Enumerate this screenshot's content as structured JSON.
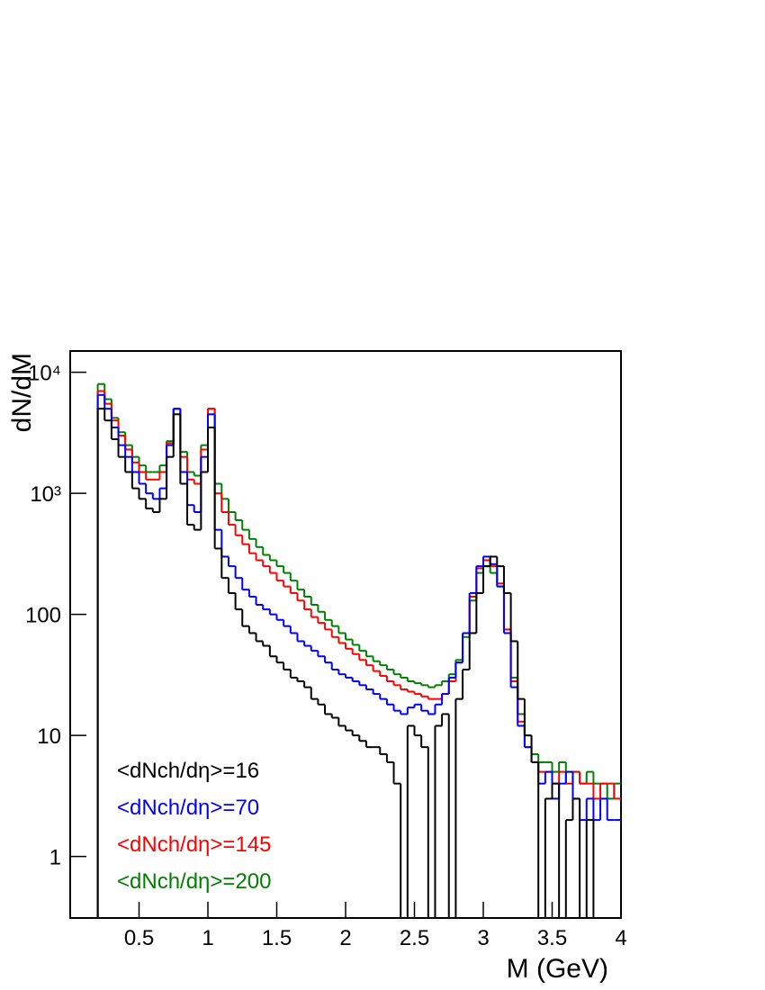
{
  "chart_data": {
    "type": "histogram",
    "xlabel": "M (GeV)",
    "ylabel": "dN/dM",
    "xlim": [
      0,
      4
    ],
    "ylim": [
      0.31,
      15000
    ],
    "ylog": true,
    "xticks": [
      0.5,
      1,
      1.5,
      2,
      2.5,
      3,
      3.5,
      4
    ],
    "yticks": [
      1,
      10,
      100,
      {
        "value": 1000,
        "label": "10³"
      },
      {
        "value": 10000,
        "label": "10⁴"
      }
    ],
    "legend": "bottom-left",
    "bins": [
      0,
      0.05,
      0.1,
      0.15,
      0.2,
      0.25,
      0.3,
      0.35,
      0.4,
      0.45,
      0.5,
      0.55,
      0.6,
      0.65,
      0.7,
      0.75,
      0.8,
      0.85,
      0.9,
      0.95,
      1,
      1.05,
      1.1,
      1.15,
      1.2,
      1.25,
      1.3,
      1.35,
      1.4,
      1.45,
      1.5,
      1.55,
      1.6,
      1.65,
      1.7,
      1.75,
      1.8,
      1.85,
      1.9,
      1.95,
      2,
      2.05,
      2.1,
      2.15,
      2.2,
      2.25,
      2.3,
      2.35,
      2.4,
      2.45,
      2.5,
      2.55,
      2.6,
      2.65,
      2.7,
      2.75,
      2.8,
      2.85,
      2.9,
      2.95,
      3,
      3.05,
      3.1,
      3.15,
      3.2,
      3.25,
      3.3,
      3.35,
      3.4,
      3.45,
      3.5,
      3.55,
      3.6,
      3.65,
      3.7,
      3.75,
      3.8,
      3.85,
      3.9,
      3.95,
      4
    ],
    "series": [
      {
        "name": "<dNch/dη>=16",
        "color": "#000000",
        "values": [
          0,
          0,
          0,
          0,
          5000,
          4000,
          2800,
          2000,
          1500,
          1100,
          900,
          750,
          700,
          900,
          2000,
          4500,
          1200,
          550,
          500,
          1500,
          3500,
          350,
          200,
          150,
          110,
          80,
          70,
          60,
          55,
          45,
          40,
          35,
          30,
          28,
          25,
          20,
          18,
          15,
          14,
          12,
          11,
          10,
          9,
          8,
          8,
          7,
          6,
          4,
          0,
          12,
          10,
          8,
          0,
          12,
          15,
          0,
          20,
          35,
          70,
          150,
          250,
          300,
          250,
          150,
          60,
          20,
          10,
          6,
          0,
          3,
          4,
          0,
          2,
          3,
          0,
          2,
          0,
          0,
          0,
          0
        ]
      },
      {
        "name": "<dNch/dη>=70",
        "color": "#0000ff",
        "values": [
          0,
          0,
          0,
          0,
          6500,
          5000,
          3500,
          2500,
          2000,
          1500,
          1200,
          1000,
          900,
          1100,
          2500,
          5000,
          1500,
          800,
          700,
          2000,
          4500,
          500,
          300,
          250,
          200,
          160,
          140,
          120,
          110,
          100,
          90,
          80,
          70,
          60,
          55,
          50,
          45,
          40,
          35,
          32,
          30,
          28,
          26,
          24,
          22,
          20,
          18,
          16,
          15,
          17,
          18,
          16,
          15,
          18,
          22,
          30,
          40,
          70,
          150,
          250,
          300,
          260,
          170,
          70,
          25,
          12,
          8,
          6,
          4,
          5,
          3,
          4,
          5,
          3,
          2,
          3,
          2,
          3,
          2,
          2
        ]
      },
      {
        "name": "<dNch/dη>=145",
        "color": "#ff0000",
        "values": [
          0,
          0,
          0,
          0,
          7000,
          5500,
          4000,
          3000,
          2300,
          1800,
          1500,
          1300,
          1300,
          1500,
          2600,
          5000,
          2000,
          1300,
          1200,
          2300,
          5000,
          1000,
          700,
          550,
          450,
          380,
          320,
          280,
          250,
          220,
          190,
          170,
          150,
          130,
          110,
          95,
          85,
          75,
          65,
          58,
          52,
          47,
          42,
          38,
          34,
          31,
          28,
          26,
          24,
          23,
          22,
          21,
          20,
          20,
          22,
          28,
          40,
          70,
          140,
          240,
          280,
          250,
          180,
          75,
          28,
          13,
          8,
          6,
          5,
          5,
          4,
          5,
          4,
          5,
          4,
          4,
          3,
          4,
          4,
          3
        ]
      },
      {
        "name": "<dNch/dη>=200",
        "color": "#008000",
        "values": [
          0,
          0,
          0,
          0,
          8000,
          6000,
          4200,
          3200,
          2500,
          2000,
          1700,
          1500,
          1500,
          1700,
          2700,
          5000,
          2200,
          1500,
          1400,
          2500,
          5000,
          1200,
          900,
          700,
          600,
          500,
          420,
          360,
          310,
          280,
          250,
          220,
          190,
          160,
          140,
          120,
          105,
          90,
          80,
          70,
          62,
          56,
          50,
          45,
          41,
          38,
          35,
          32,
          30,
          28,
          27,
          26,
          25,
          26,
          28,
          32,
          42,
          65,
          130,
          220,
          250,
          220,
          170,
          75,
          30,
          15,
          10,
          7,
          6,
          6,
          5,
          6,
          5,
          5,
          4,
          5,
          4,
          4,
          3,
          4
        ]
      }
    ]
  }
}
